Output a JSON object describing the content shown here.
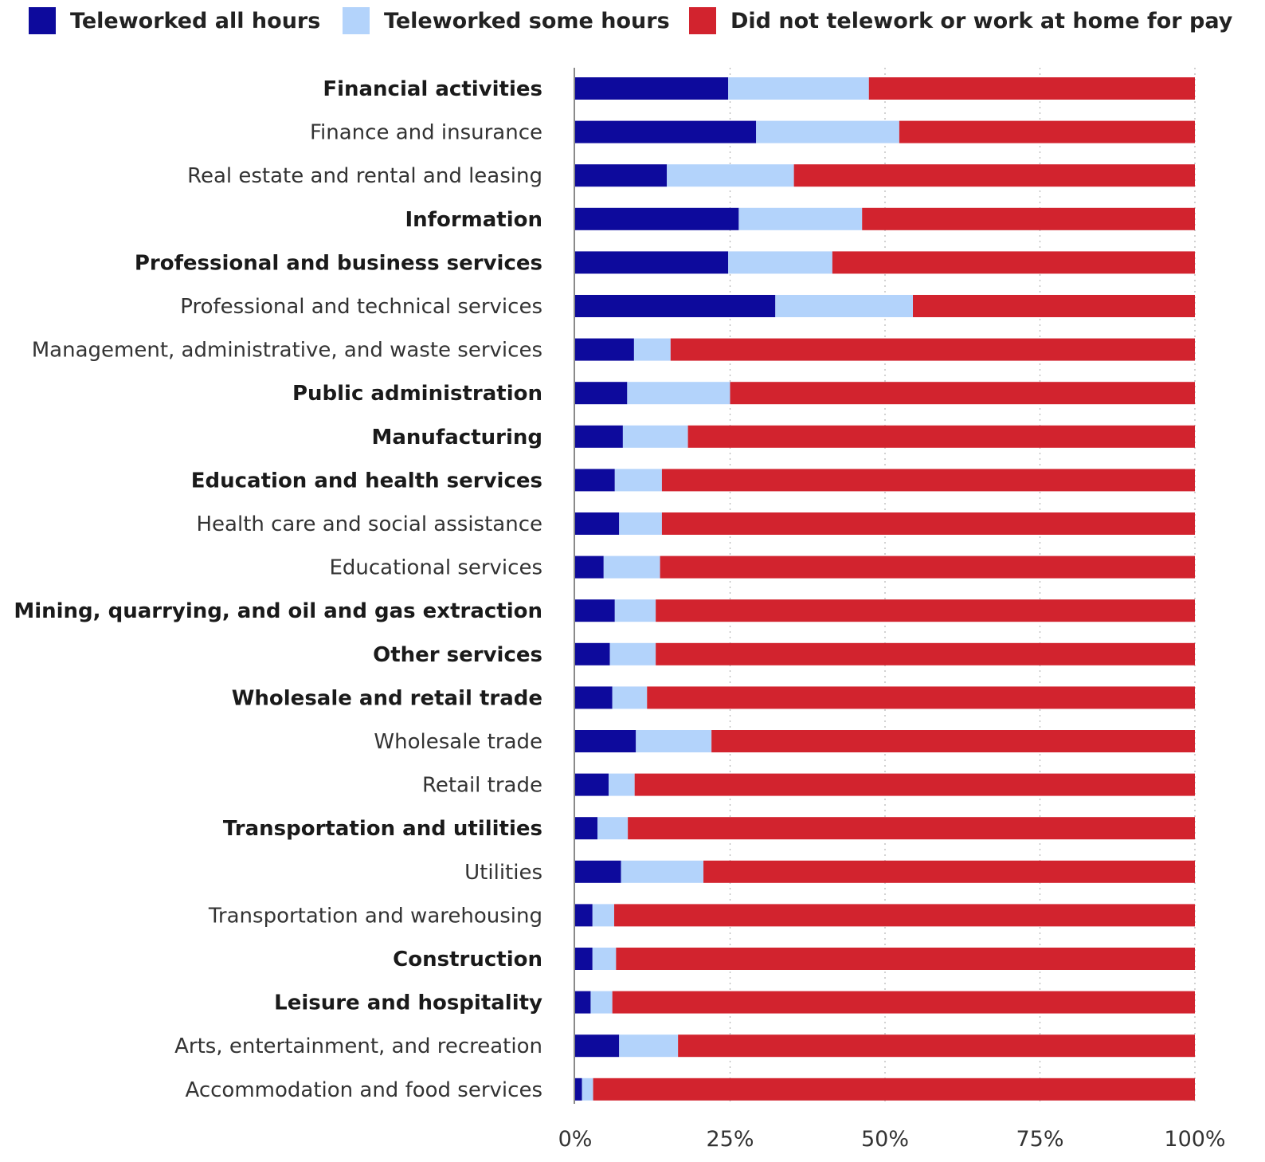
{
  "legend": {
    "all_hours": "Teleworked all hours",
    "some_hours": "Teleworked some hours",
    "no_telework": "Did not telework or work at home for pay"
  },
  "colors": {
    "all_hours": "#0d0a9c",
    "some_hours": "#b3d3fb",
    "no_telework": "#d2232e"
  },
  "chart_data": {
    "type": "bar",
    "orientation": "horizontal",
    "stacked": true,
    "xlim": [
      0,
      100
    ],
    "xticks": [
      "0%",
      "25%",
      "50%",
      "75%",
      "100%"
    ],
    "grid": "vertical dotted",
    "legend_position": "top",
    "categories": [
      "Financial activities",
      "Finance and insurance",
      "Real estate and rental and leasing",
      "Information",
      "Professional and business services",
      "Professional and technical services",
      "Management, administrative, and waste services",
      "Public administration",
      "Manufacturing",
      "Education and health services",
      "Health care and social assistance",
      "Educational services",
      "Mining, quarrying, and oil and gas extraction",
      "Other services",
      "Wholesale and retail trade",
      "Wholesale trade",
      "Retail trade",
      "Transportation and utilities",
      "Utilities",
      "Transportation and warehousing",
      "Construction",
      "Leisure and hospitality",
      "Arts, entertainment, and recreation",
      "Accommodation and food services"
    ],
    "bold_categories": [
      "Financial activities",
      "Information",
      "Professional and business services",
      "Public administration",
      "Manufacturing",
      "Education and health services",
      "Mining, quarrying, and oil and gas extraction",
      "Other services",
      "Wholesale and retail trade",
      "Transportation and utilities",
      "Construction",
      "Leisure and hospitality"
    ],
    "series": [
      {
        "name": "Teleworked all hours",
        "values": [
          24.7,
          29.2,
          14.8,
          26.4,
          24.7,
          32.3,
          9.5,
          8.4,
          7.7,
          6.4,
          7.1,
          4.6,
          6.4,
          5.6,
          6.0,
          9.8,
          5.4,
          3.6,
          7.4,
          2.8,
          2.8,
          2.5,
          7.1,
          1.1
        ]
      },
      {
        "name": "Teleworked some hours",
        "values": [
          22.7,
          23.1,
          20.5,
          19.9,
          16.8,
          22.2,
          5.9,
          16.6,
          10.5,
          7.6,
          6.9,
          9.1,
          6.6,
          7.4,
          5.6,
          12.2,
          4.2,
          4.9,
          13.3,
          3.5,
          3.8,
          3.5,
          9.5,
          1.8
        ]
      },
      {
        "name": "Did not telework or work at home for pay",
        "values": [
          52.6,
          47.7,
          64.7,
          53.7,
          58.5,
          45.5,
          84.6,
          75.0,
          81.8,
          86.0,
          86.0,
          86.3,
          87.0,
          87.0,
          88.4,
          78.0,
          90.4,
          91.5,
          79.3,
          93.7,
          93.4,
          94.0,
          83.4,
          97.1
        ]
      }
    ]
  }
}
